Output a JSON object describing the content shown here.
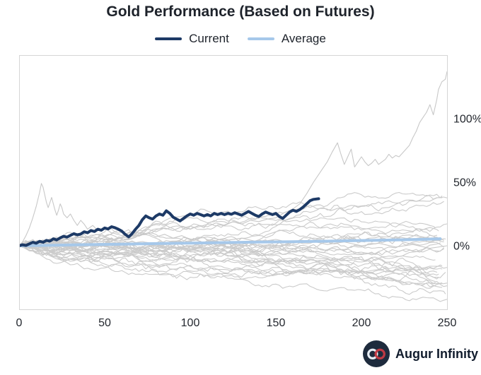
{
  "header": {
    "title": "Gold Performance (Based on Futures)"
  },
  "legend": {
    "items": [
      {
        "label": "Current",
        "color": "#1d3a66"
      },
      {
        "label": "Average",
        "color": "#a6c8ea"
      }
    ]
  },
  "footer": {
    "brand": "Augur Infinity",
    "logo": {
      "bg": "#1e2b3d",
      "left_loop": "#e8eef5",
      "right_loop": "#bf3a44"
    }
  },
  "chart_data": {
    "type": "line",
    "title": "Gold Performance (Based on Futures)",
    "xlabel": "",
    "ylabel": "",
    "xlim": [
      0,
      250
    ],
    "ylim": [
      -50,
      150
    ],
    "x_ticks": [
      0,
      50,
      100,
      150,
      200,
      250
    ],
    "y_ticks": [
      {
        "value": 0,
        "label": "0%"
      },
      {
        "value": 50,
        "label": "50%"
      },
      {
        "value": 100,
        "label": "100%"
      }
    ],
    "grid": false,
    "legend_position": "top-center",
    "border_color": "#d5d5d5",
    "series": [
      {
        "name": "historical-outlier-early-spike",
        "role": "background",
        "color": "#c8c8c8",
        "width": 1.1,
        "points": [
          [
            0,
            0
          ],
          [
            2,
            3
          ],
          [
            4,
            8
          ],
          [
            6,
            14
          ],
          [
            8,
            22
          ],
          [
            10,
            31
          ],
          [
            12,
            42
          ],
          [
            13,
            49
          ],
          [
            14,
            46
          ],
          [
            15,
            40
          ],
          [
            16,
            34
          ],
          [
            17,
            30
          ],
          [
            18,
            34
          ],
          [
            19,
            38
          ],
          [
            20,
            33
          ],
          [
            21,
            28
          ],
          [
            22,
            24
          ],
          [
            23,
            28
          ],
          [
            24,
            33
          ],
          [
            25,
            30
          ],
          [
            26,
            25
          ],
          [
            28,
            22
          ],
          [
            30,
            25
          ],
          [
            32,
            20
          ],
          [
            34,
            16
          ],
          [
            36,
            20
          ],
          [
            38,
            17
          ],
          [
            40,
            13
          ],
          [
            43,
            16
          ],
          [
            46,
            12
          ],
          [
            50,
            14
          ],
          [
            54,
            10
          ],
          [
            58,
            12
          ],
          [
            62,
            9
          ],
          [
            66,
            11
          ],
          [
            70,
            8
          ],
          [
            75,
            10
          ],
          [
            80,
            7
          ],
          [
            85,
            9
          ],
          [
            90,
            6
          ],
          [
            95,
            8
          ],
          [
            100,
            5
          ],
          [
            110,
            7
          ],
          [
            120,
            4
          ],
          [
            130,
            6
          ],
          [
            140,
            3
          ],
          [
            150,
            5
          ],
          [
            160,
            2
          ],
          [
            170,
            4
          ],
          [
            180,
            1
          ],
          [
            190,
            3
          ],
          [
            200,
            0
          ],
          [
            210,
            2
          ],
          [
            220,
            -1
          ],
          [
            230,
            1
          ],
          [
            240,
            -2
          ],
          [
            250,
            0
          ]
        ]
      },
      {
        "name": "historical-outlier-late-rally",
        "role": "background",
        "color": "#c8c8c8",
        "width": 1.1,
        "points": [
          [
            0,
            0
          ],
          [
            5,
            2
          ],
          [
            10,
            1
          ],
          [
            15,
            4
          ],
          [
            20,
            3
          ],
          [
            25,
            6
          ],
          [
            30,
            5
          ],
          [
            35,
            8
          ],
          [
            40,
            6
          ],
          [
            45,
            9
          ],
          [
            50,
            7
          ],
          [
            55,
            10
          ],
          [
            60,
            8
          ],
          [
            65,
            11
          ],
          [
            70,
            10
          ],
          [
            75,
            13
          ],
          [
            80,
            11
          ],
          [
            85,
            14
          ],
          [
            90,
            12
          ],
          [
            95,
            15
          ],
          [
            100,
            13
          ],
          [
            105,
            16
          ],
          [
            110,
            15
          ],
          [
            115,
            18
          ],
          [
            120,
            16
          ],
          [
            125,
            19
          ],
          [
            130,
            17
          ],
          [
            135,
            20
          ],
          [
            140,
            19
          ],
          [
            145,
            21
          ],
          [
            150,
            22
          ],
          [
            155,
            26
          ],
          [
            160,
            29
          ],
          [
            164,
            33
          ],
          [
            168,
            41
          ],
          [
            172,
            50
          ],
          [
            176,
            58
          ],
          [
            180,
            66
          ],
          [
            183,
            74
          ],
          [
            186,
            81
          ],
          [
            188,
            72
          ],
          [
            190,
            64
          ],
          [
            192,
            70
          ],
          [
            194,
            76
          ],
          [
            196,
            62
          ],
          [
            198,
            66
          ],
          [
            200,
            70
          ],
          [
            202,
            66
          ],
          [
            204,
            63
          ],
          [
            206,
            65
          ],
          [
            208,
            68
          ],
          [
            210,
            64
          ],
          [
            212,
            66
          ],
          [
            214,
            68
          ],
          [
            216,
            72
          ],
          [
            218,
            69
          ],
          [
            220,
            71
          ],
          [
            222,
            70
          ],
          [
            224,
            73
          ],
          [
            226,
            76
          ],
          [
            228,
            79
          ],
          [
            230,
            85
          ],
          [
            232,
            90
          ],
          [
            234,
            97
          ],
          [
            236,
            101
          ],
          [
            238,
            105
          ],
          [
            240,
            111
          ],
          [
            242,
            103
          ],
          [
            244,
            115
          ],
          [
            245,
            123
          ],
          [
            247,
            129
          ],
          [
            249,
            131
          ],
          [
            250,
            137
          ]
        ]
      },
      {
        "name": "Average",
        "role": "main",
        "color": "#a6c8ea",
        "width": 4,
        "points": [
          [
            0,
            0
          ],
          [
            20,
            0.4
          ],
          [
            40,
            0.9
          ],
          [
            60,
            1.3
          ],
          [
            80,
            1.7
          ],
          [
            100,
            2.1
          ],
          [
            120,
            2.5
          ],
          [
            140,
            2.9
          ],
          [
            160,
            3.2
          ],
          [
            180,
            3.6
          ],
          [
            200,
            4.1
          ],
          [
            220,
            4.6
          ],
          [
            235,
            5
          ],
          [
            246,
            5.5
          ]
        ]
      },
      {
        "name": "Current",
        "role": "main",
        "color": "#1d3a66",
        "width": 4,
        "points": [
          [
            0,
            0
          ],
          [
            2,
            0.8
          ],
          [
            4,
            0.3
          ],
          [
            6,
            1.5
          ],
          [
            8,
            2.8
          ],
          [
            10,
            2
          ],
          [
            12,
            3.5
          ],
          [
            14,
            2.7
          ],
          [
            16,
            4.2
          ],
          [
            18,
            3.6
          ],
          [
            20,
            5.5
          ],
          [
            22,
            4.6
          ],
          [
            24,
            6.2
          ],
          [
            26,
            7.5
          ],
          [
            28,
            6.8
          ],
          [
            30,
            8.2
          ],
          [
            32,
            9.5
          ],
          [
            34,
            8.6
          ],
          [
            36,
            9.2
          ],
          [
            38,
            11
          ],
          [
            40,
            10.2
          ],
          [
            42,
            12
          ],
          [
            44,
            11.2
          ],
          [
            46,
            13
          ],
          [
            48,
            12.2
          ],
          [
            50,
            14
          ],
          [
            52,
            13.2
          ],
          [
            54,
            15
          ],
          [
            56,
            14.2
          ],
          [
            58,
            13
          ],
          [
            60,
            11.5
          ],
          [
            62,
            9
          ],
          [
            64,
            7
          ],
          [
            66,
            9.5
          ],
          [
            68,
            13
          ],
          [
            70,
            16
          ],
          [
            72,
            20.5
          ],
          [
            74,
            23.5
          ],
          [
            76,
            22
          ],
          [
            78,
            21
          ],
          [
            80,
            23.5
          ],
          [
            82,
            25
          ],
          [
            84,
            24
          ],
          [
            86,
            27.5
          ],
          [
            88,
            25.5
          ],
          [
            90,
            22.5
          ],
          [
            92,
            21
          ],
          [
            94,
            19.5
          ],
          [
            96,
            21.5
          ],
          [
            98,
            23.5
          ],
          [
            100,
            25
          ],
          [
            102,
            24
          ],
          [
            104,
            25.5
          ],
          [
            106,
            24.5
          ],
          [
            108,
            23.5
          ],
          [
            110,
            24.5
          ],
          [
            112,
            23.5
          ],
          [
            114,
            25.5
          ],
          [
            116,
            24.5
          ],
          [
            118,
            25.5
          ],
          [
            120,
            24.5
          ],
          [
            122,
            25.5
          ],
          [
            124,
            24.8
          ],
          [
            126,
            26
          ],
          [
            128,
            25
          ],
          [
            130,
            24
          ],
          [
            132,
            25.5
          ],
          [
            134,
            27
          ],
          [
            136,
            25.5
          ],
          [
            138,
            24
          ],
          [
            140,
            23
          ],
          [
            142,
            25
          ],
          [
            144,
            26.5
          ],
          [
            146,
            25.5
          ],
          [
            148,
            24.5
          ],
          [
            150,
            25.5
          ],
          [
            152,
            23
          ],
          [
            154,
            21.5
          ],
          [
            156,
            24
          ],
          [
            158,
            26.5
          ],
          [
            160,
            28
          ],
          [
            162,
            27
          ],
          [
            164,
            28.5
          ],
          [
            166,
            30.5
          ],
          [
            168,
            33
          ],
          [
            170,
            35.5
          ],
          [
            172,
            36.5
          ],
          [
            175,
            37
          ]
        ]
      }
    ],
    "background_ensemble": {
      "description": "approximately 33 unlabeled gray historical gold performance paths fanning out from 0%",
      "count": 33,
      "seed": 42,
      "steps": 250,
      "color": "#cbcbcb",
      "width": 1.1,
      "drift_range": [
        -0.125,
        0.085
      ],
      "vol_range": [
        0.8,
        1.6
      ],
      "value_clamp": [
        -44,
        42
      ]
    }
  }
}
